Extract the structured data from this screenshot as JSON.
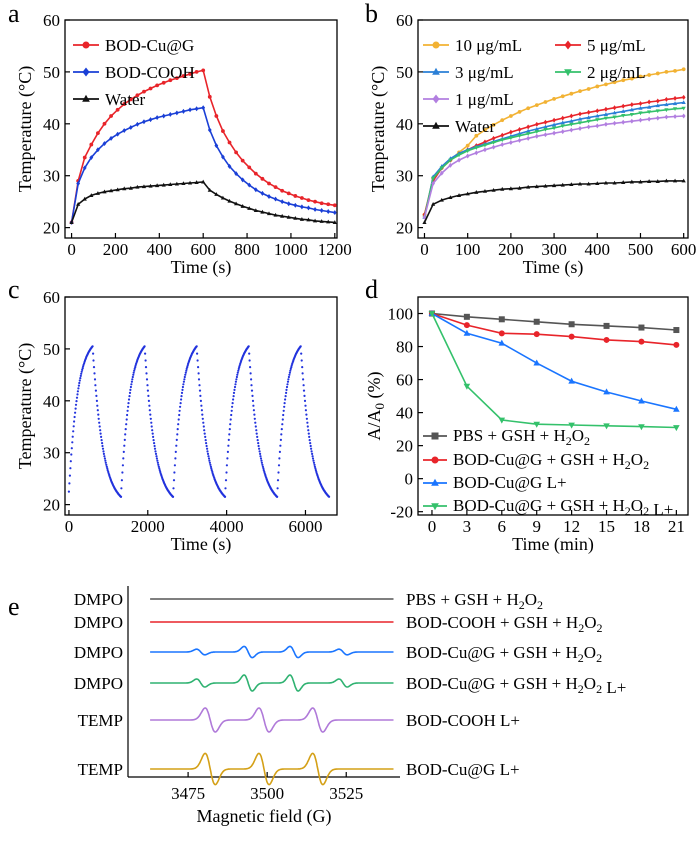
{
  "panel_labels": [
    "a",
    "b",
    "c",
    "d",
    "e"
  ],
  "colors": {
    "red": "#e8242a",
    "blue": "#1a3fd6",
    "black": "#111111",
    "yellow": "#f2b233",
    "sblue": "#2a7fd6",
    "green": "#34c16b",
    "purple": "#b27fe0",
    "gray": "#555555",
    "cblue": "#2233dd",
    "epr_gray": "#555555",
    "epr_red": "#e8242a",
    "epr_blue": "#1a75ff",
    "epr_green": "#2fb271",
    "epr_purple": "#b07ad9",
    "epr_gold": "#d4a017"
  },
  "chart_data": [
    {
      "id": "a",
      "type": "line",
      "xlabel": "Time (s)",
      "ylabel": "Temperature (°C)",
      "xlim": [
        -30,
        1210
      ],
      "ylim": [
        18,
        60
      ],
      "xticks": [
        0,
        200,
        400,
        600,
        800,
        1000,
        1200
      ],
      "yticks": [
        20,
        30,
        40,
        50,
        60
      ],
      "legend": "top-left",
      "series": [
        {
          "name": "BOD-Cu@G",
          "color": "#e8242a",
          "marker": "circle",
          "x": [
            0,
            30,
            60,
            90,
            120,
            150,
            180,
            210,
            240,
            270,
            300,
            330,
            360,
            390,
            420,
            450,
            480,
            510,
            540,
            570,
            600,
            630,
            660,
            690,
            720,
            750,
            780,
            810,
            840,
            870,
            900,
            930,
            960,
            990,
            1020,
            1050,
            1080,
            1110,
            1140,
            1170,
            1200
          ],
          "y": [
            21,
            29,
            33.5,
            36,
            38.2,
            40,
            41.5,
            42.7,
            43.8,
            44.7,
            45.5,
            46.2,
            46.8,
            47.4,
            47.9,
            48.4,
            48.8,
            49.2,
            49.6,
            50,
            50.3,
            45.2,
            41.5,
            38.6,
            36.4,
            34.5,
            32.9,
            31.6,
            30.4,
            29.4,
            28.5,
            27.8,
            27.1,
            26.6,
            26.1,
            25.7,
            25.3,
            25,
            24.7,
            24.5,
            24.3
          ]
        },
        {
          "name": "BOD-COOH",
          "color": "#1a3fd6",
          "marker": "diamond",
          "x": [
            0,
            30,
            60,
            90,
            120,
            150,
            180,
            210,
            240,
            270,
            300,
            330,
            360,
            390,
            420,
            450,
            480,
            510,
            540,
            570,
            600,
            630,
            660,
            690,
            720,
            750,
            780,
            810,
            840,
            870,
            900,
            930,
            960,
            990,
            1020,
            1050,
            1080,
            1110,
            1140,
            1170,
            1200
          ],
          "y": [
            21,
            28.5,
            31.5,
            33.5,
            35,
            36.2,
            37.2,
            38,
            38.7,
            39.3,
            39.9,
            40.4,
            40.8,
            41.2,
            41.5,
            41.8,
            42.1,
            42.4,
            42.7,
            42.9,
            43.1,
            38.8,
            35.8,
            33.6,
            31.8,
            30.4,
            29.2,
            28.2,
            27.3,
            26.6,
            26,
            25.5,
            25,
            24.6,
            24.3,
            24,
            23.8,
            23.5,
            23.3,
            23.1,
            22.9
          ]
        },
        {
          "name": "Water",
          "color": "#111111",
          "marker": "triangle",
          "x": [
            0,
            30,
            60,
            90,
            120,
            150,
            180,
            210,
            240,
            270,
            300,
            330,
            360,
            390,
            420,
            450,
            480,
            510,
            540,
            570,
            600,
            630,
            660,
            690,
            720,
            750,
            780,
            810,
            840,
            870,
            900,
            930,
            960,
            990,
            1020,
            1050,
            1080,
            1110,
            1140,
            1170,
            1200
          ],
          "y": [
            21,
            24.5,
            25.5,
            26.2,
            26.6,
            26.9,
            27.1,
            27.3,
            27.5,
            27.6,
            27.8,
            27.9,
            28,
            28.1,
            28.2,
            28.3,
            28.4,
            28.5,
            28.6,
            28.7,
            28.8,
            27.2,
            26.4,
            25.7,
            25.1,
            24.6,
            24.1,
            23.7,
            23.3,
            23,
            22.7,
            22.4,
            22.2,
            22,
            21.8,
            21.6,
            21.5,
            21.3,
            21.2,
            21.1,
            21
          ]
        }
      ]
    },
    {
      "id": "b",
      "type": "line",
      "xlabel": "Time (s)",
      "ylabel": "Temperature (°C)",
      "xlim": [
        -15,
        610
      ],
      "ylim": [
        18,
        60
      ],
      "xticks": [
        0,
        100,
        200,
        300,
        400,
        500,
        600
      ],
      "yticks": [
        20,
        30,
        40,
        50,
        60
      ],
      "legend": "top",
      "series": [
        {
          "name": "10 μg/mL",
          "color": "#f2b233",
          "marker": "circle",
          "x": [
            0,
            20,
            40,
            60,
            80,
            100,
            120,
            140,
            160,
            180,
            200,
            220,
            240,
            260,
            280,
            300,
            320,
            340,
            360,
            380,
            400,
            420,
            440,
            460,
            480,
            500,
            520,
            540,
            560,
            580,
            600
          ],
          "y": [
            22.5,
            29.5,
            31.5,
            33,
            34.5,
            35.8,
            37.7,
            38.8,
            39.8,
            40.7,
            41.5,
            42.3,
            43,
            43.6,
            44.2,
            44.8,
            45.3,
            45.8,
            46.3,
            46.7,
            47.2,
            47.6,
            48,
            48.4,
            48.7,
            49.1,
            49.4,
            49.7,
            50,
            50.2,
            50.5
          ]
        },
        {
          "name": "5 μg/mL",
          "color": "#e8242a",
          "marker": "diamond",
          "x": [
            0,
            20,
            40,
            60,
            80,
            100,
            120,
            140,
            160,
            180,
            200,
            220,
            240,
            260,
            280,
            300,
            320,
            340,
            360,
            380,
            400,
            420,
            440,
            460,
            480,
            500,
            520,
            540,
            560,
            580,
            600
          ],
          "y": [
            22.5,
            29,
            31.5,
            33,
            34.2,
            35,
            35.8,
            36.5,
            37.2,
            37.8,
            38.4,
            38.9,
            39.4,
            39.9,
            40.3,
            40.7,
            41.1,
            41.5,
            41.9,
            42.2,
            42.5,
            42.8,
            43.1,
            43.4,
            43.7,
            43.9,
            44.2,
            44.4,
            44.7,
            44.9,
            45.1
          ]
        },
        {
          "name": "3 μg/mL",
          "color": "#2a7fd6",
          "marker": "triangle",
          "x": [
            0,
            20,
            40,
            60,
            80,
            100,
            120,
            140,
            160,
            180,
            200,
            220,
            240,
            260,
            280,
            300,
            320,
            340,
            360,
            380,
            400,
            420,
            440,
            460,
            480,
            500,
            520,
            540,
            560,
            580,
            600
          ],
          "y": [
            22,
            29.8,
            31.8,
            33.3,
            34.3,
            35,
            35.6,
            36.1,
            36.6,
            37.1,
            37.6,
            38.1,
            38.6,
            39,
            39.4,
            39.8,
            40.2,
            40.5,
            40.9,
            41.2,
            41.5,
            41.8,
            42.1,
            42.4,
            42.7,
            43,
            43.2,
            43.5,
            43.7,
            43.9,
            44.1
          ]
        },
        {
          "name": "2 μg/mL",
          "color": "#34c16b",
          "marker": "triangle-down",
          "x": [
            0,
            20,
            40,
            60,
            80,
            100,
            120,
            140,
            160,
            180,
            200,
            220,
            240,
            260,
            280,
            300,
            320,
            340,
            360,
            380,
            400,
            420,
            440,
            460,
            480,
            500,
            520,
            540,
            560,
            580,
            600
          ],
          "y": [
            22,
            29.5,
            31.5,
            33,
            34,
            34.8,
            35.4,
            35.9,
            36.4,
            36.9,
            37.3,
            37.7,
            38.1,
            38.5,
            38.9,
            39.2,
            39.6,
            39.9,
            40.2,
            40.5,
            40.8,
            41.1,
            41.3,
            41.6,
            41.8,
            42.1,
            42.3,
            42.5,
            42.7,
            42.9,
            43
          ]
        },
        {
          "name": "1 μg/mL",
          "color": "#b27fe0",
          "marker": "diamond",
          "x": [
            0,
            20,
            40,
            60,
            80,
            100,
            120,
            140,
            160,
            180,
            200,
            220,
            240,
            260,
            280,
            300,
            320,
            340,
            360,
            380,
            400,
            420,
            440,
            460,
            480,
            500,
            520,
            540,
            560,
            580,
            600
          ],
          "y": [
            22,
            28.5,
            30.5,
            32,
            33,
            33.8,
            34.4,
            35,
            35.5,
            36,
            36.4,
            36.8,
            37.2,
            37.6,
            37.9,
            38.2,
            38.5,
            38.8,
            39.1,
            39.4,
            39.6,
            39.9,
            40.1,
            40.3,
            40.5,
            40.7,
            40.9,
            41.1,
            41.3,
            41.4,
            41.5
          ]
        },
        {
          "name": "Water",
          "color": "#111111",
          "marker": "triangle",
          "x": [
            0,
            20,
            40,
            60,
            80,
            100,
            120,
            140,
            160,
            180,
            200,
            220,
            240,
            260,
            280,
            300,
            320,
            340,
            360,
            380,
            400,
            420,
            440,
            460,
            480,
            500,
            520,
            540,
            560,
            580,
            600
          ],
          "y": [
            21,
            24.5,
            25.3,
            25.8,
            26.2,
            26.5,
            26.8,
            27,
            27.2,
            27.4,
            27.5,
            27.6,
            27.8,
            27.9,
            28,
            28.1,
            28.2,
            28.3,
            28.4,
            28.4,
            28.5,
            28.6,
            28.6,
            28.7,
            28.8,
            28.8,
            28.9,
            28.9,
            29,
            29,
            29
          ]
        }
      ]
    },
    {
      "id": "c",
      "type": "scatter",
      "xlabel": "Time (s)",
      "ylabel": "Temperature (°C)",
      "xlim": [
        -100,
        6800
      ],
      "ylim": [
        18,
        60
      ],
      "xticks": [
        0,
        2000,
        4000,
        6000
      ],
      "yticks": [
        20,
        30,
        40,
        50,
        60
      ],
      "cycles": 5,
      "cycle_period_s": 1320,
      "heat_s": 600,
      "t_min": 21.5,
      "t_max": 50.5,
      "t_start": 22.5
    },
    {
      "id": "d",
      "type": "line",
      "xlabel": "Time (min)",
      "ylabel": "A/A0 (%)",
      "xlim": [
        -1.2,
        22
      ],
      "ylim": [
        -22,
        110
      ],
      "xticks": [
        0,
        3,
        6,
        9,
        12,
        15,
        18,
        21
      ],
      "yticks": [
        -20,
        0,
        20,
        40,
        60,
        80,
        100
      ],
      "legend": "bottom-left",
      "series": [
        {
          "name": "PBS + GSH + H2O2",
          "color": "#555555",
          "marker": "square",
          "x": [
            0,
            3,
            6,
            9,
            12,
            15,
            18,
            21
          ],
          "y": [
            100,
            98,
            96.5,
            95,
            93.5,
            92.5,
            91.5,
            90
          ]
        },
        {
          "name": "BOD-Cu@G + GSH + H2O2",
          "color": "#e8242a",
          "marker": "circle",
          "x": [
            0,
            3,
            6,
            9,
            12,
            15,
            18,
            21
          ],
          "y": [
            100,
            93,
            88,
            87.5,
            86,
            84,
            83,
            81
          ]
        },
        {
          "name": "BOD-Cu@G L+",
          "color": "#1a75ff",
          "marker": "triangle",
          "x": [
            0,
            3,
            6,
            9,
            12,
            15,
            18,
            21
          ],
          "y": [
            100,
            88,
            82,
            70,
            59,
            52.5,
            47,
            42
          ]
        },
        {
          "name": "BOD-Cu@G + GSH + H2O2 L+",
          "color": "#34c16b",
          "marker": "triangle-down",
          "x": [
            0,
            3,
            6,
            9,
            12,
            15,
            18,
            21
          ],
          "y": [
            100,
            56,
            35.5,
            33,
            32.5,
            32,
            31.5,
            31
          ]
        }
      ]
    },
    {
      "id": "e",
      "type": "line",
      "xlabel": "Magnetic field (G)",
      "xlim": [
        3456,
        3542
      ],
      "xticks": [
        3475,
        3500,
        3525
      ],
      "traces": [
        {
          "left": "DMPO",
          "right": "PBS + GSH + H2O2",
          "color": "#555555",
          "kind": "flat",
          "peaks": []
        },
        {
          "left": "DMPO",
          "right": "BOD-COOH + GSH + H2O2",
          "color": "#e8242a",
          "kind": "flat",
          "peaks": []
        },
        {
          "left": "DMPO",
          "right": "BOD-Cu@G + GSH + H2O2",
          "color": "#1a75ff",
          "kind": "dmpo",
          "peaks": [
            [
              3479,
              0.35
            ],
            [
              3494,
              0.7
            ],
            [
              3508.5,
              0.7
            ],
            [
              3524,
              0.35
            ]
          ]
        },
        {
          "left": "DMPO",
          "right": "BOD-Cu@G + GSH + H2O2 L+",
          "color": "#2fb271",
          "kind": "dmpo",
          "peaks": [
            [
              3479,
              0.5
            ],
            [
              3494,
              1
            ],
            [
              3508.5,
              1
            ],
            [
              3524,
              0.5
            ]
          ]
        },
        {
          "left": "TEMP",
          "right": "BOD-COOH L+",
          "color": "#b07ad9",
          "kind": "temp",
          "peaks": [
            [
              3482,
              1
            ],
            [
              3499,
              1
            ],
            [
              3516,
              1
            ]
          ]
        },
        {
          "left": "TEMP",
          "right": "BOD-Cu@G L+",
          "color": "#d4a017",
          "kind": "temp",
          "peaks": [
            [
              3482,
              1.3
            ],
            [
              3499,
              1.3
            ],
            [
              3516,
              1.3
            ]
          ]
        }
      ]
    }
  ]
}
